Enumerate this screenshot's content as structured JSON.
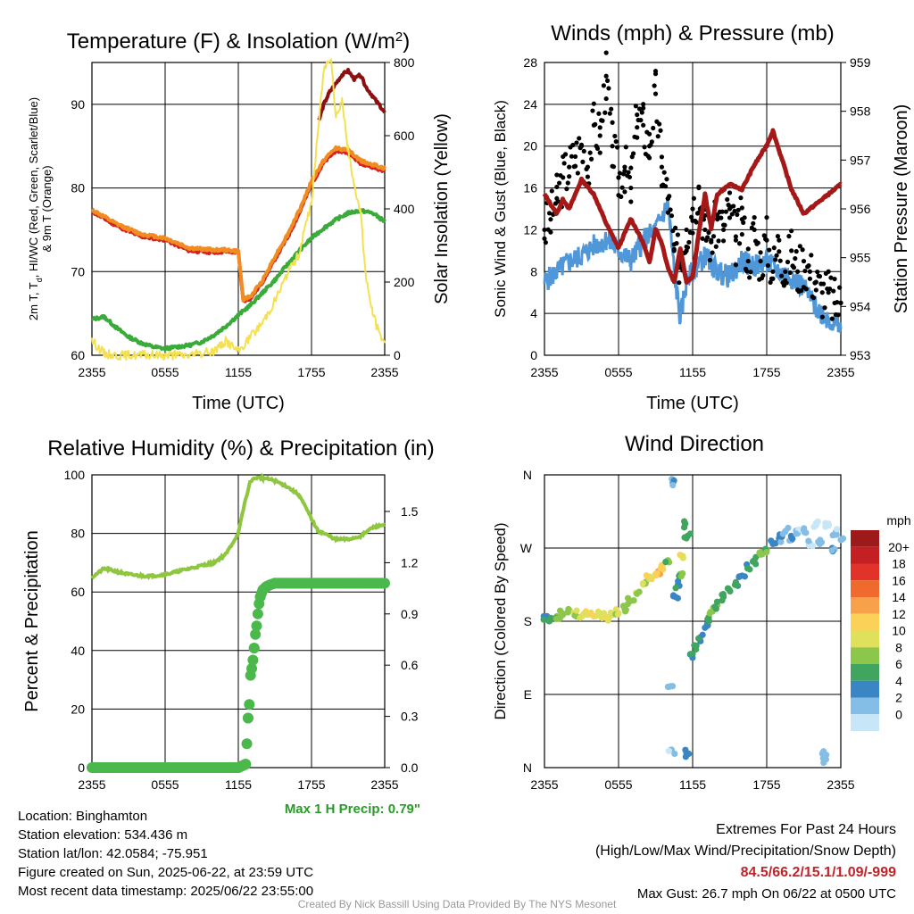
{
  "chart_data": [
    {
      "type": "line",
      "title": "Temperature (F) & Insolation (W/m²)",
      "xlabel": "Time (UTC)",
      "ylabel": "2m T, Td, HI/WC (Red, Green, Scarlet/Blue) & 9m T (Orange)",
      "y2label": "Solar Insolation (Yellow)",
      "x_ticks": [
        "2355",
        "0555",
        "1155",
        "1755",
        "2355"
      ],
      "ylim": [
        60,
        95
      ],
      "y_ticks": [
        60,
        70,
        80,
        90
      ],
      "y2lim": [
        0,
        800
      ],
      "y2_ticks": [
        0,
        200,
        400,
        600,
        800
      ],
      "series": [
        {
          "name": "2m T",
          "color": "#d62020",
          "x_hours": [
            0,
            2,
            4,
            6,
            8,
            10,
            11,
            12,
            12.4,
            13,
            14,
            15,
            16,
            17,
            18,
            19,
            20,
            21,
            22,
            23,
            24
          ],
          "values": [
            77.2,
            75.5,
            74.2,
            73.8,
            72.5,
            72.3,
            72.4,
            72.3,
            66.5,
            66.8,
            68.8,
            71.5,
            74.0,
            77.0,
            80.5,
            83.0,
            84.5,
            84.2,
            83.0,
            82.5,
            82.0
          ]
        },
        {
          "name": "9m T",
          "color": "#f08c20",
          "x_hours": [
            0,
            2,
            4,
            6,
            8,
            10,
            11,
            12,
            12.4,
            13,
            14,
            15,
            16,
            17,
            18,
            19,
            20,
            21,
            22,
            23,
            24
          ],
          "values": [
            77.4,
            75.7,
            74.5,
            74.0,
            72.8,
            72.6,
            72.6,
            72.4,
            66.7,
            67.0,
            69.0,
            71.8,
            74.3,
            77.3,
            80.8,
            83.3,
            84.8,
            84.5,
            83.3,
            82.8,
            82.3
          ]
        },
        {
          "name": "Td",
          "color": "#3aaa3a",
          "x_hours": [
            0,
            1,
            2,
            3,
            4,
            5,
            6,
            7,
            8,
            9,
            10,
            11,
            12,
            13,
            14,
            15,
            16,
            17,
            18,
            19,
            20,
            21,
            22,
            23,
            24
          ],
          "values": [
            64.3,
            64.6,
            63.3,
            62.2,
            61.5,
            61.0,
            60.8,
            61.0,
            61.2,
            61.6,
            62.4,
            63.5,
            64.8,
            66.0,
            67.5,
            69.0,
            70.8,
            72.5,
            74.0,
            75.2,
            76.2,
            77.0,
            77.3,
            77.0,
            76.0
          ]
        },
        {
          "name": "HI",
          "color": "#8c1010",
          "x_hours": [
            18.6,
            19,
            19.5,
            20,
            20.5,
            21,
            21.5,
            22,
            22.5,
            23,
            23.5,
            24
          ],
          "values": [
            88.0,
            90.0,
            91.5,
            92.5,
            93.5,
            94.0,
            93.0,
            93.5,
            92.0,
            91.0,
            90.0,
            89.0
          ]
        },
        {
          "name": "Solar Insolation",
          "color": "#f5e050",
          "axis": "y2",
          "x_hours": [
            0,
            1,
            2,
            3,
            4,
            5,
            6,
            7,
            8,
            9,
            10,
            11,
            12,
            13,
            14,
            15,
            16,
            17,
            18,
            19,
            19.6,
            20,
            20.5,
            21,
            21.5,
            22,
            22.5,
            23,
            23.5,
            24
          ],
          "values": [
            40,
            5,
            0,
            0,
            0,
            0,
            0,
            0,
            0,
            5,
            12,
            40,
            10,
            50,
            90,
            150,
            220,
            280,
            420,
            780,
            820,
            650,
            700,
            560,
            460,
            400,
            200,
            120,
            60,
            40
          ]
        }
      ]
    },
    {
      "type": "line",
      "title": "Winds (mph) & Pressure (mb)",
      "xlabel": "Time (UTC)",
      "ylabel": "Sonic Wind & Gust (Blue, Black)",
      "y2label": "Station Pressure (Maroon)",
      "x_ticks": [
        "2355",
        "0555",
        "1155",
        "1755",
        "2355"
      ],
      "ylim": [
        0,
        28
      ],
      "y_ticks": [
        0,
        4,
        8,
        12,
        16,
        20,
        24,
        28
      ],
      "y2lim": [
        953,
        959
      ],
      "y2_ticks": [
        953,
        954,
        955,
        956,
        957,
        958,
        959
      ],
      "series": [
        {
          "name": "Sonic Wind",
          "color": "#4f97d8",
          "x_hours": [
            0,
            1,
            2,
            3,
            4,
            5,
            6,
            7,
            8,
            9,
            10,
            10.5,
            11,
            11.5,
            12,
            13,
            14,
            15,
            16,
            17,
            18,
            19,
            20,
            21,
            22,
            23,
            24
          ],
          "values": [
            7.0,
            8.0,
            9.0,
            9.5,
            10.5,
            11.0,
            10.0,
            9.0,
            11.0,
            12.0,
            14.5,
            8.0,
            3.5,
            7.0,
            8.0,
            9.5,
            8.0,
            7.5,
            9.0,
            8.5,
            9.0,
            8.0,
            7.5,
            6.5,
            4.5,
            3.5,
            2.5
          ]
        },
        {
          "name": "Gust",
          "color": "#000000",
          "type": "scatter",
          "x_hours": [
            0,
            0.5,
            1,
            1.5,
            2,
            2.5,
            3,
            3.5,
            4,
            4.5,
            5,
            5.5,
            6,
            6.5,
            7,
            7.5,
            8,
            8.5,
            9,
            9.5,
            10,
            10.5,
            11,
            11.5,
            12,
            12.5,
            13,
            13.5,
            14,
            14.5,
            15,
            15.5,
            16,
            16.5,
            17,
            17.5,
            18,
            18.5,
            19,
            19.5,
            20,
            20.5,
            21,
            21.5,
            22,
            22.5,
            23,
            23.5,
            24
          ],
          "values": [
            12,
            13,
            15,
            17,
            18,
            19,
            20,
            18,
            22,
            21,
            26.7,
            20,
            17,
            18,
            16,
            23,
            22,
            20,
            25,
            18,
            15,
            10,
            9,
            12,
            14,
            16,
            12,
            11,
            13,
            12,
            14,
            11,
            13,
            9,
            12,
            9,
            11,
            8,
            11,
            8,
            10,
            8,
            9,
            8,
            7,
            6,
            6,
            5,
            5
          ]
        },
        {
          "name": "Station Pressure",
          "color": "#a51818",
          "axis": "y2",
          "x_hours": [
            0,
            1,
            1.5,
            2,
            3,
            4,
            5,
            6,
            7,
            8,
            8.5,
            9,
            9.5,
            10,
            10.5,
            11,
            11.5,
            12,
            12.5,
            13,
            13.5,
            14,
            15,
            16,
            17,
            18,
            18.5,
            19,
            20,
            21,
            22,
            23,
            24
          ],
          "values": [
            956.3,
            955.9,
            956.2,
            956.0,
            956.6,
            956.3,
            955.7,
            955.2,
            955.8,
            955.3,
            954.9,
            955.6,
            955.3,
            954.8,
            954.5,
            955.2,
            954.5,
            954.6,
            955.5,
            956.3,
            955.6,
            956.3,
            956.5,
            956.4,
            956.9,
            957.3,
            957.6,
            957.2,
            956.4,
            955.9,
            956.1,
            956.3,
            956.5
          ]
        }
      ]
    },
    {
      "type": "line",
      "title": "Relative Humidity (%) & Precipitation (in)",
      "xlabel": "",
      "ylabel": "Percent & Precipitation",
      "x_ticks": [
        "2355",
        "0555",
        "1155",
        "1755",
        "2355"
      ],
      "ylim": [
        0,
        100
      ],
      "y_ticks": [
        0,
        20,
        40,
        60,
        80,
        100
      ],
      "y2lim": [
        0,
        1.7143
      ],
      "y2_ticks": [
        "0.0",
        "0.3",
        "0.6",
        "0.9",
        "1.2",
        "1.5"
      ],
      "annotation": "Max 1 H Precip: 0.79\"",
      "series": [
        {
          "name": "Relative Humidity",
          "color": "#8ec63f",
          "x_hours": [
            0,
            1,
            2,
            3,
            4,
            5,
            6,
            7,
            8,
            9,
            10,
            11,
            12,
            12.5,
            13,
            13.5,
            14,
            15,
            16,
            17,
            18,
            18.5,
            19,
            20,
            21,
            22,
            23,
            24
          ],
          "values": [
            65,
            68,
            67,
            66,
            65.5,
            65.5,
            66,
            67,
            68,
            69,
            70,
            73,
            80,
            90,
            98,
            99,
            99,
            98,
            96,
            93,
            85,
            81,
            80,
            78,
            78,
            79,
            82,
            83
          ]
        },
        {
          "name": "Precipitation",
          "color": "#4ab84a",
          "type": "scatter",
          "axis": "y2",
          "x_hours": [
            0,
            2,
            4,
            6,
            8,
            10,
            11,
            12,
            12.6,
            12.7,
            12.8,
            12.9,
            13,
            13.1,
            13.2,
            13.3,
            13.4,
            13.5,
            13.6,
            13.7,
            13.8,
            14,
            14.3,
            14.6,
            15,
            15.5,
            16,
            17,
            18,
            19,
            20,
            21,
            22,
            23,
            24
          ],
          "values": [
            0,
            0,
            0,
            0,
            0,
            0,
            0,
            0,
            0.02,
            0.14,
            0.29,
            0.37,
            0.54,
            0.58,
            0.63,
            0.7,
            0.78,
            0.83,
            0.9,
            0.96,
            1.0,
            1.04,
            1.06,
            1.07,
            1.08,
            1.08,
            1.08,
            1.08,
            1.08,
            1.08,
            1.08,
            1.08,
            1.08,
            1.08,
            1.08
          ]
        }
      ]
    },
    {
      "type": "scatter",
      "title": "Wind Direction",
      "ylabel": "Direction (Colored By Speed)",
      "x_ticks": [
        "2355",
        "0555",
        "1155",
        "1755",
        "2355"
      ],
      "y_ticks": [
        "N",
        "E",
        "S",
        "W",
        "N"
      ],
      "ylim_deg": [
        0,
        360
      ],
      "colorbar_unit": "mph",
      "colorbar_labels": [
        "20+",
        "18",
        "16",
        "14",
        "12",
        "10",
        "8",
        "6",
        "4",
        "2",
        "0"
      ],
      "colorbar_colors": [
        "#9e1a1a",
        "#c41f22",
        "#e2332b",
        "#f06a2e",
        "#f7a24a",
        "#fbd257",
        "#dfe05b",
        "#8cc74c",
        "#3fa55f",
        "#3a86c4",
        "#84bde6",
        "#c7e6f8"
      ],
      "points": [
        {
          "h": 0,
          "deg": 182,
          "spd": 6
        },
        {
          "h": 0.5,
          "deg": 184,
          "spd": 7
        },
        {
          "h": 1,
          "deg": 186,
          "spd": 8
        },
        {
          "h": 1.5,
          "deg": 188,
          "spd": 9
        },
        {
          "h": 2,
          "deg": 192,
          "spd": 10
        },
        {
          "h": 2.5,
          "deg": 190,
          "spd": 10
        },
        {
          "h": 3,
          "deg": 186,
          "spd": 11
        },
        {
          "h": 3.5,
          "deg": 188,
          "spd": 12
        },
        {
          "h": 4,
          "deg": 186,
          "spd": 12
        },
        {
          "h": 4.5,
          "deg": 187,
          "spd": 11
        },
        {
          "h": 5,
          "deg": 185,
          "spd": 12
        },
        {
          "h": 5.5,
          "deg": 188,
          "spd": 11
        },
        {
          "h": 6,
          "deg": 190,
          "spd": 10
        },
        {
          "h": 6.5,
          "deg": 195,
          "spd": 9
        },
        {
          "h": 7,
          "deg": 205,
          "spd": 9
        },
        {
          "h": 7.5,
          "deg": 215,
          "spd": 10
        },
        {
          "h": 8,
          "deg": 225,
          "spd": 10
        },
        {
          "h": 8.5,
          "deg": 232,
          "spd": 12
        },
        {
          "h": 9,
          "deg": 238,
          "spd": 13
        },
        {
          "h": 9.3,
          "deg": 242,
          "spd": 14
        },
        {
          "h": 9.6,
          "deg": 244,
          "spd": 13
        },
        {
          "h": 10,
          "deg": 255,
          "spd": 8
        },
        {
          "h": 10.2,
          "deg": 100,
          "spd": 3
        },
        {
          "h": 10.3,
          "deg": 22,
          "spd": 2
        },
        {
          "h": 10.4,
          "deg": 350,
          "spd": 4
        },
        {
          "h": 10.6,
          "deg": 210,
          "spd": 5
        },
        {
          "h": 10.8,
          "deg": 225,
          "spd": 6
        },
        {
          "h": 11,
          "deg": 238,
          "spd": 8
        },
        {
          "h": 11.2,
          "deg": 260,
          "spd": 12
        },
        {
          "h": 11.4,
          "deg": 300,
          "spd": 7
        },
        {
          "h": 11.5,
          "deg": 18,
          "spd": 4
        },
        {
          "h": 11.6,
          "deg": 285,
          "spd": 7
        },
        {
          "h": 12,
          "deg": 140,
          "spd": 6
        },
        {
          "h": 12.3,
          "deg": 150,
          "spd": 7
        },
        {
          "h": 12.6,
          "deg": 160,
          "spd": 6
        },
        {
          "h": 13,
          "deg": 172,
          "spd": 5
        },
        {
          "h": 13.3,
          "deg": 185,
          "spd": 7
        },
        {
          "h": 13.6,
          "deg": 192,
          "spd": 9
        },
        {
          "h": 14,
          "deg": 200,
          "spd": 8
        },
        {
          "h": 14.5,
          "deg": 210,
          "spd": 7
        },
        {
          "h": 15,
          "deg": 218,
          "spd": 7
        },
        {
          "h": 15.5,
          "deg": 228,
          "spd": 6
        },
        {
          "h": 16,
          "deg": 236,
          "spd": 5
        },
        {
          "h": 16.5,
          "deg": 245,
          "spd": 6
        },
        {
          "h": 17,
          "deg": 255,
          "spd": 7
        },
        {
          "h": 17.5,
          "deg": 262,
          "spd": 9
        },
        {
          "h": 18,
          "deg": 268,
          "spd": 8
        },
        {
          "h": 18.5,
          "deg": 275,
          "spd": 5
        },
        {
          "h": 19,
          "deg": 282,
          "spd": 4
        },
        {
          "h": 19.5,
          "deg": 290,
          "spd": 3
        },
        {
          "h": 20,
          "deg": 280,
          "spd": 4
        },
        {
          "h": 20.5,
          "deg": 288,
          "spd": 2
        },
        {
          "h": 21,
          "deg": 292,
          "spd": 3
        },
        {
          "h": 21.5,
          "deg": 275,
          "spd": 2
        },
        {
          "h": 22,
          "deg": 298,
          "spd": 1
        },
        {
          "h": 22.3,
          "deg": 275,
          "spd": 2
        },
        {
          "h": 22.6,
          "deg": 20,
          "spd": 3
        },
        {
          "h": 22.8,
          "deg": 10,
          "spd": 3
        },
        {
          "h": 23,
          "deg": 300,
          "spd": 1
        },
        {
          "h": 23.3,
          "deg": 270,
          "spd": 4
        },
        {
          "h": 23.6,
          "deg": 290,
          "spd": 2
        },
        {
          "h": 24,
          "deg": 280,
          "spd": 3
        }
      ]
    }
  ],
  "footer": {
    "location": "Location: Binghamton",
    "elevation": "Station elevation: 534.436 m",
    "latlon": "Station lat/lon: 42.0584; -75.951",
    "created": "Figure created on Sun, 2025-06-22, at 23:59 UTC",
    "recent": "Most recent data timestamp: 2025/06/22 23:55:00",
    "extremes_title": "Extremes For Past 24 Hours",
    "extremes_sub": "(High/Low/Max Wind/Precipitation/Snow Depth)",
    "extremes_values": "84.5/66.2/15.1/1.09/-999",
    "max_gust": "Max Gust: 26.7 mph On 06/22 at 0500 UTC",
    "credit": "Created By Nick Bassill Using Data Provided By The NYS Mesonet"
  }
}
